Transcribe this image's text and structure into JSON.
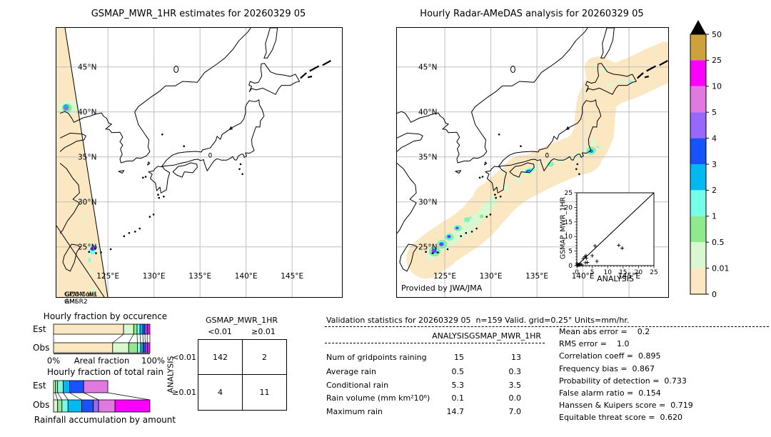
{
  "palette": {
    "p0": "#fbe7c1",
    "p001": "#d9f8cf",
    "p05": "#8deb8d",
    "p1": "#75ffe9",
    "p2": "#00b9f0",
    "p3": "#1852fa",
    "p4": "#9768fa",
    "p5": "#e07ae0",
    "p10": "#fb00ff",
    "p25": "#cfa03e"
  },
  "left_map": {
    "title": "GSMAP_MWR_1HR estimates for 20260329 05",
    "lat_ticks": [
      "45°N",
      "40°N",
      "35°N",
      "30°N",
      "25°N"
    ],
    "lon_ticks": [
      "125°E",
      "130°E",
      "135°E",
      "140°E",
      "145°E"
    ],
    "overpass": [
      [
        "GPM-Core",
        "GCOM-W1"
      ],
      [
        "GMI",
        "AMSR2"
      ]
    ]
  },
  "right_map": {
    "title": "Hourly Radar-AMeDAS analysis for 20260329 05",
    "credit": "Provided by JWA/JMA",
    "lat_ticks": [
      "45°N",
      "40°N",
      "35°N",
      "30°N",
      "25°N"
    ],
    "lon_ticks": [
      "125°E",
      "130°E",
      "135°E",
      "140°E",
      "145°E"
    ]
  },
  "colorbar": {
    "labels": [
      "50",
      "25",
      "10",
      "5",
      "4",
      "3",
      "2",
      "1",
      "0.5",
      "0.01",
      "0"
    ],
    "colors": [
      "#cfa03e",
      "#fb00ff",
      "#e07ae0",
      "#9768fa",
      "#1852fa",
      "#00b9f0",
      "#75ffe9",
      "#8deb8d",
      "#d9f8cf",
      "#fbe7c1"
    ],
    "over": "#000000"
  },
  "chart_data": {
    "occurrence": {
      "type": "bar",
      "title": "Hourly fraction by occurence",
      "row_labels": [
        "Est",
        "Obs"
      ],
      "x0_label": "0%",
      "xlabel": "Areal fraction",
      "x100_label": "100%",
      "est": [
        [
          "p0",
          72.7
        ],
        [
          "p001",
          10.5
        ],
        [
          "p05",
          3.5
        ],
        [
          "p1",
          3.0
        ],
        [
          "p2",
          2.8
        ],
        [
          "p3",
          2.3
        ],
        [
          "p4",
          2.4
        ],
        [
          "p10",
          2.8
        ]
      ],
      "obs": [
        [
          "p0",
          61.3
        ],
        [
          "p001",
          16.7
        ],
        [
          "p05",
          9.0
        ],
        [
          "p1",
          3.4
        ],
        [
          "p2",
          2.6
        ],
        [
          "p3",
          2.1
        ],
        [
          "p4",
          2.1
        ],
        [
          "p10",
          2.8
        ]
      ]
    },
    "total_rain": {
      "type": "bar",
      "title": "Hourly fraction of total rain",
      "row_labels": [
        "Est",
        "Obs"
      ],
      "caption": "Rainfall accumulation by amount",
      "est": [
        [
          "p001",
          1.75
        ],
        [
          "p05",
          2.5
        ],
        [
          "p1",
          5.75
        ],
        [
          "p2",
          6.75
        ],
        [
          "p3",
          14.5
        ],
        [
          "p5",
          25.0
        ]
      ],
      "obs": [
        [
          "p001",
          4.25
        ],
        [
          "p05",
          4.5
        ],
        [
          "p1",
          6.25
        ],
        [
          "p2",
          14.25
        ],
        [
          "p3",
          12.0
        ],
        [
          "p4",
          5.5
        ],
        [
          "p5",
          17.0
        ],
        [
          "p10",
          36.25
        ]
      ]
    },
    "contingency": {
      "type": "table",
      "col_header": "GSMAP_MWR_1HR",
      "row_header": "ANALYSIS",
      "col_labels": [
        "<0.01",
        "≥0.01"
      ],
      "row_labels": [
        "<0.01",
        "≥0.01"
      ],
      "values": [
        [
          142,
          2
        ],
        [
          4,
          11
        ]
      ]
    },
    "validation": {
      "type": "table",
      "title": "Validation statistics for 20260329 05  n=159 Valid. grid=0.25° Units=mm/hr.",
      "columns": [
        "ANALYSIS",
        "GSMAP_MWR_1HR"
      ],
      "rows": [
        [
          "Num of gridpoints raining",
          "15",
          "13"
        ],
        [
          "Average rain",
          "0.5",
          "0.3"
        ],
        [
          "Conditional rain",
          "5.3",
          "3.5"
        ],
        [
          "Rain volume (mm km²10⁶)",
          "0.1",
          "0.0"
        ],
        [
          "Maximum rain",
          "14.7",
          "7.0"
        ]
      ]
    },
    "scores": {
      "type": "list",
      "items": [
        "Mean abs error =    0.2",
        "RMS error =    1.0",
        "Correlation coeff =  0.895",
        "Frequency bias =  0.867",
        "Probability of detection =  0.733",
        "False alarm ratio =  0.154",
        "Hanssen & Kuipers score =  0.719",
        "Equitable threat score =  0.620"
      ]
    },
    "inset_scatter": {
      "type": "scatter",
      "xlabel": "ANALYSIS",
      "ylabel": "GSMAP_MWR_1HR",
      "xlim": [
        0,
        25
      ],
      "ylim": [
        0,
        25
      ],
      "ticks": [
        0,
        5,
        10,
        15,
        20,
        25
      ],
      "points": [
        [
          0.1,
          0.1
        ],
        [
          0.25,
          0.3
        ],
        [
          0.4,
          0.1
        ],
        [
          0.6,
          0.35
        ],
        [
          0.15,
          0.6
        ],
        [
          0.9,
          0.2
        ],
        [
          1.1,
          0.65
        ],
        [
          1.6,
          0.3
        ],
        [
          2.1,
          2.4
        ],
        [
          2.6,
          3.1
        ],
        [
          3.0,
          3.4
        ],
        [
          3.1,
          2.6
        ],
        [
          2.8,
          1.0
        ],
        [
          3.4,
          1.1
        ],
        [
          5.0,
          3.4
        ],
        [
          5.9,
          6.8
        ],
        [
          6.5,
          1.5
        ],
        [
          13.6,
          7.0
        ],
        [
          14.7,
          6.0
        ]
      ]
    },
    "rain_overlays": {
      "left": {
        "swath_poly": [
          [
            0,
            0
          ],
          [
            12,
            0
          ],
          [
            72,
            377
          ],
          [
            0,
            377
          ]
        ],
        "swath_lines": [
          [
            [
              12,
              0
            ],
            [
              72,
              377
            ]
          ],
          [
            [
              0,
              277
            ],
            [
              67,
              377
            ]
          ]
        ],
        "spots": [
          [
            120.75,
            40.5,
            14,
            10,
            "p001",
            0
          ],
          [
            120.55,
            40.45,
            7,
            6,
            "p05",
            0
          ],
          [
            120.45,
            40.5,
            4,
            4.5,
            "p2",
            0
          ],
          [
            120.42,
            40.38,
            2.5,
            3,
            "p4",
            0
          ],
          [
            122.5,
            28.2,
            3,
            2.5,
            "p001",
            0
          ],
          [
            121.6,
            25.9,
            2.5,
            2,
            "p001",
            0
          ],
          [
            123.2,
            22.3,
            3,
            3.5,
            "p001",
            0
          ],
          [
            123.35,
            20.2,
            3,
            4,
            "p001",
            0
          ],
          [
            123.45,
            24.8,
            7,
            6,
            "p001",
            0
          ],
          [
            123.3,
            24.55,
            4.5,
            5,
            "p1",
            0
          ],
          [
            123.0,
            23.55,
            2,
            3,
            "p1",
            0
          ],
          [
            123.45,
            24.87,
            5,
            3.2,
            "p3",
            -25
          ],
          [
            123.44,
            24.88,
            3,
            1.8,
            "p4",
            -25
          ],
          [
            123.43,
            24.9,
            1.6,
            1.1,
            "p10",
            -25
          ]
        ]
      },
      "right": {
        "band": {
          "pts": [
            [
              123.0,
              23.7
            ],
            [
              124.3,
              24.8
            ],
            [
              125.8,
              25.8
            ],
            [
              127.2,
              26.7
            ],
            [
              128.5,
              27.8
            ],
            [
              129.7,
              29.2
            ],
            [
              131.0,
              30.7
            ],
            [
              132.6,
              32.0
            ],
            [
              134.4,
              33.0
            ],
            [
              136.2,
              33.9
            ],
            [
              138.0,
              34.7
            ],
            [
              139.6,
              35.3
            ],
            [
              140.6,
              36.3
            ],
            [
              141.2,
              37.7
            ],
            [
              141.3,
              39.5
            ],
            [
              141.5,
              41.0
            ],
            [
              142.0,
              42.2
            ],
            [
              143.2,
              43.0
            ],
            [
              144.6,
              43.5
            ],
            [
              146.0,
              44.1
            ],
            [
              147.6,
              44.9
            ],
            [
              149.2,
              45.6
            ]
          ],
          "w": 56,
          "c": "p0"
        },
        "band_spots": [
          [
            124.0,
            24.4,
            32,
            26,
            "p0",
            0
          ],
          [
            125.3,
            25.5,
            28,
            24,
            "p0",
            0
          ],
          [
            123.3,
            23.8,
            28,
            26,
            "p0",
            0
          ],
          [
            133.8,
            33.2,
            32,
            26,
            "p0",
            0
          ],
          [
            130.2,
            30.3,
            28,
            24,
            "p0",
            0
          ],
          [
            139.9,
            35.0,
            28,
            24,
            "p0",
            0
          ],
          [
            135.4,
            33.5,
            26,
            22,
            "p0",
            0
          ],
          [
            142.3,
            44.2,
            26,
            20,
            "p0",
            0
          ],
          [
            141.7,
            44.9,
            20,
            16,
            "p0",
            0
          ],
          [
            143.7,
            43.9,
            24,
            18,
            "p0",
            0
          ]
        ],
        "green_band": {
          "pts": [
            [
              123.5,
              24.1
            ],
            [
              124.6,
              25.0
            ],
            [
              125.9,
              25.9
            ],
            [
              127.1,
              26.8
            ],
            [
              128.2,
              27.8
            ],
            [
              129.2,
              28.9
            ],
            [
              130.2,
              30.1
            ]
          ],
          "w": 14,
          "c": "p001"
        },
        "spots": [
          [
            131.7,
            31.6,
            5,
            4,
            "p001",
            0
          ],
          [
            132.9,
            32.4,
            5,
            4,
            "p001",
            0
          ],
          [
            133.9,
            33.3,
            7,
            5,
            "p001",
            0
          ],
          [
            134.9,
            33.8,
            5,
            4,
            "p001",
            0
          ],
          [
            136.4,
            34.15,
            6,
            5,
            "p001",
            0
          ],
          [
            137.4,
            34.5,
            4,
            3,
            "p001",
            0
          ],
          [
            139.3,
            35.1,
            5,
            4,
            "p001",
            0
          ],
          [
            140.7,
            35.8,
            7,
            6,
            "p001",
            0
          ],
          [
            141.15,
            36.6,
            4,
            4,
            "p001",
            0
          ],
          [
            142.9,
            43.05,
            4,
            3,
            "p001",
            0
          ],
          [
            143.9,
            43.5,
            4,
            3,
            "p001",
            0
          ],
          [
            144.9,
            43.35,
            3.5,
            3,
            "p001",
            0
          ],
          [
            142.2,
            44.6,
            3.5,
            3,
            "p001",
            0
          ],
          [
            141.3,
            45.05,
            3,
            2.5,
            "p001",
            0
          ],
          [
            145.3,
            44.2,
            2.5,
            2.5,
            "p001",
            0
          ],
          [
            131.3,
            33.4,
            3,
            2.5,
            "p001",
            0
          ],
          [
            138.3,
            34.9,
            3,
            2.5,
            "p001",
            0
          ],
          [
            123.9,
            24.5,
            8,
            7,
            "p05",
            0
          ],
          [
            124.7,
            25.3,
            7,
            6,
            "p05",
            0
          ],
          [
            125.5,
            26.1,
            6,
            5,
            "p05",
            0
          ],
          [
            126.4,
            27.1,
            5.5,
            4.5,
            "p05",
            0
          ],
          [
            127.4,
            28.0,
            4,
            3.5,
            "p05",
            0
          ],
          [
            129.0,
            28.4,
            3,
            2.5,
            "p05",
            0
          ],
          [
            134.2,
            33.5,
            6,
            3,
            "p05",
            -15
          ],
          [
            136.5,
            34.2,
            4.5,
            3.5,
            "p05",
            0
          ],
          [
            140.9,
            35.7,
            6.5,
            5.5,
            "p05",
            0
          ],
          [
            123.85,
            24.55,
            6,
            5,
            "p1",
            0
          ],
          [
            124.65,
            25.3,
            5.5,
            4.5,
            "p1",
            0
          ],
          [
            125.45,
            26.15,
            4.5,
            4,
            "p1",
            0
          ],
          [
            126.35,
            27.15,
            4,
            3.5,
            "p1",
            0
          ],
          [
            127.3,
            27.9,
            2.8,
            2.2,
            "p1",
            0
          ],
          [
            127.75,
            28.25,
            2.2,
            2,
            "p1",
            0
          ],
          [
            134.2,
            33.5,
            7.5,
            2.6,
            "p1",
            -15
          ],
          [
            136.5,
            34.25,
            3.2,
            2.6,
            "p1",
            0
          ],
          [
            140.9,
            35.65,
            4.8,
            4,
            "p1",
            0
          ],
          [
            141.6,
            36.1,
            1.8,
            1.6,
            "p1",
            0
          ],
          [
            145.2,
            43.35,
            2.2,
            1.8,
            "p1",
            0
          ],
          [
            123.85,
            24.55,
            4,
            3.2,
            "p2",
            0
          ],
          [
            124.65,
            25.3,
            3.5,
            3,
            "p2",
            0
          ],
          [
            125.45,
            26.15,
            3,
            2.6,
            "p2",
            0
          ],
          [
            126.35,
            27.1,
            2.6,
            2.2,
            "p2",
            0
          ],
          [
            134.1,
            33.47,
            4.5,
            1.6,
            "p2",
            -15
          ],
          [
            140.9,
            35.65,
            3.2,
            2.6,
            "p2",
            0
          ],
          [
            123.85,
            24.55,
            2.8,
            2.2,
            "p3",
            0
          ],
          [
            124.6,
            25.3,
            2.6,
            2.2,
            "p3",
            0
          ],
          [
            125.45,
            26.15,
            2.2,
            1.8,
            "p3",
            0
          ],
          [
            126.3,
            27.1,
            1.8,
            1.5,
            "p3",
            0
          ],
          [
            134.0,
            33.45,
            2.6,
            1.1,
            "p3",
            -15
          ],
          [
            140.9,
            35.65,
            2.2,
            1.8,
            "p3",
            0
          ],
          [
            140.95,
            35.67,
            1.5,
            1.3,
            "p4",
            0
          ],
          [
            123.85,
            24.55,
            2,
            1.6,
            "p10",
            0
          ],
          [
            124.6,
            25.3,
            1.8,
            1.5,
            "p10",
            0
          ],
          [
            125.45,
            26.15,
            1.4,
            1.2,
            "p10",
            0
          ],
          [
            126.3,
            27.1,
            1.2,
            1,
            "p10",
            0
          ],
          [
            124.15,
            24.35,
            1.2,
            1,
            "p10",
            0
          ],
          [
            123.55,
            24.3,
            1,
            0.9,
            "p10",
            0
          ]
        ]
      }
    }
  }
}
